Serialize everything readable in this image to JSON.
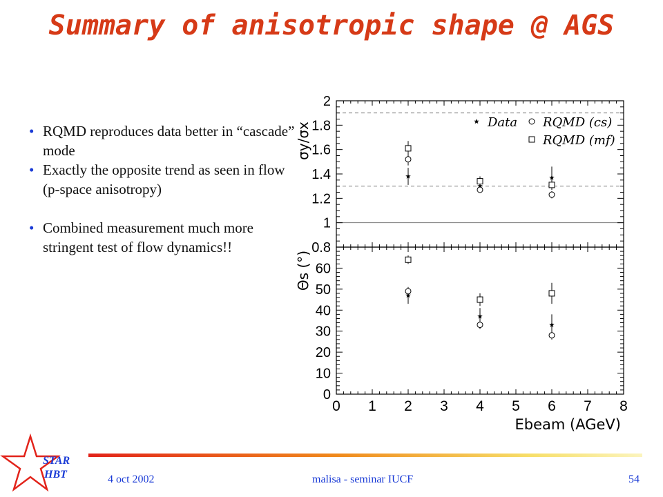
{
  "slide": {
    "title": "Summary of anisotropic shape @ AGS",
    "bullets": [
      "RQMD reproduces data better in “cascade” mode",
      "Exactly the opposite trend as seen in flow (p-space anisotropy)",
      "Combined measurement much more stringent test of flow dynamics!!"
    ],
    "footer": {
      "date": "4 oct 2002",
      "center": "malisa - seminar IUCF",
      "page": "54"
    },
    "logo_text": [
      "STAR",
      "HBT"
    ]
  },
  "colors": {
    "title": "#d63a17",
    "bullet": "#1a3bd6",
    "footer_text": "#1a3bd6",
    "logo": "#e2231a"
  },
  "chart_data": [
    {
      "type": "scatter",
      "panel": "top",
      "ylabel": "σy/σx",
      "xlim": [
        0,
        8
      ],
      "ylim": [
        0.8,
        2
      ],
      "yticks": [
        "0.8",
        "1",
        "1.2",
        "1.4",
        "1.6",
        "1.8",
        "2"
      ],
      "reference_lines": [
        {
          "y": 1.0,
          "style": "solid"
        },
        {
          "y": 1.3,
          "style": "dashed"
        },
        {
          "y": 1.9,
          "style": "dashed"
        }
      ],
      "legend": [
        "Data",
        "RQMD (cs)",
        "RQMD (mf)"
      ],
      "legend_position": "top-right",
      "series": [
        {
          "name": "Data",
          "marker": "star",
          "points": [
            {
              "x": 2,
              "y": 1.38,
              "err": 0.07
            },
            {
              "x": 4,
              "y": 1.3,
              "err": 0.05
            },
            {
              "x": 6,
              "y": 1.37,
              "err": 0.09
            }
          ]
        },
        {
          "name": "RQMD (cs)",
          "marker": "circle",
          "points": [
            {
              "x": 2,
              "y": 1.52,
              "err": 0.05
            },
            {
              "x": 4,
              "y": 1.27,
              "err": 0.02
            },
            {
              "x": 6,
              "y": 1.23,
              "err": 0.03
            }
          ]
        },
        {
          "name": "RQMD (mf)",
          "marker": "square",
          "points": [
            {
              "x": 2,
              "y": 1.61,
              "err": 0.06
            },
            {
              "x": 4,
              "y": 1.34,
              "err": 0.04
            },
            {
              "x": 6,
              "y": 1.31,
              "err": 0.04
            }
          ]
        }
      ]
    },
    {
      "type": "scatter",
      "panel": "bottom",
      "ylabel": "Θs (°)",
      "xlabel": "Ebeam (AGeV)",
      "xlim": [
        0,
        8
      ],
      "ylim": [
        0,
        70
      ],
      "xticks": [
        "0",
        "1",
        "2",
        "3",
        "4",
        "5",
        "6",
        "7",
        "8"
      ],
      "yticks": [
        "0",
        "10",
        "20",
        "30",
        "40",
        "50",
        "60"
      ],
      "series": [
        {
          "name": "Data",
          "marker": "star",
          "points": [
            {
              "x": 2,
              "y": 47,
              "err": 4
            },
            {
              "x": 4,
              "y": 37,
              "err": 4
            },
            {
              "x": 6,
              "y": 33,
              "err": 5
            }
          ]
        },
        {
          "name": "RQMD (cs)",
          "marker": "circle",
          "points": [
            {
              "x": 2,
              "y": 49,
              "err": 2
            },
            {
              "x": 4,
              "y": 33,
              "err": 2
            },
            {
              "x": 6,
              "y": 28,
              "err": 2
            }
          ]
        },
        {
          "name": "RQMD (mf)",
          "marker": "square",
          "points": [
            {
              "x": 2,
              "y": 64,
              "err": 2
            },
            {
              "x": 4,
              "y": 45,
              "err": 3
            },
            {
              "x": 6,
              "y": 48,
              "err": 5
            }
          ]
        }
      ]
    }
  ]
}
